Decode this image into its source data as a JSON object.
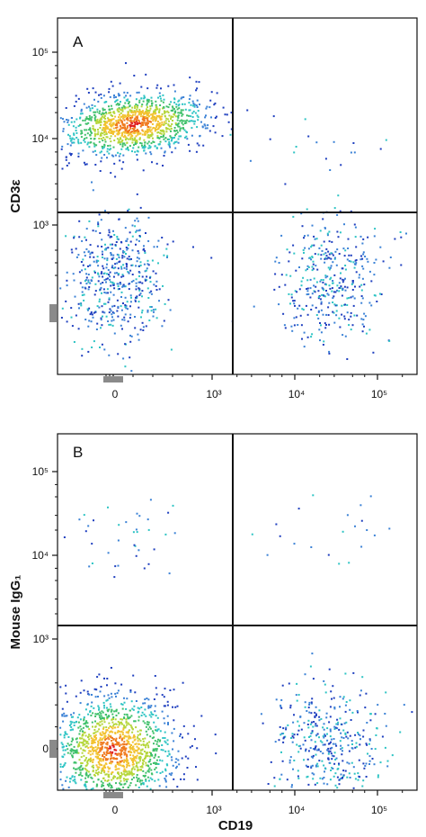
{
  "chart_data": [
    {
      "type": "scatter",
      "panel_label": "A",
      "ylabel": "CD3ε",
      "xlabel": "",
      "x_ticks": [
        {
          "label": "0",
          "value": 0
        },
        {
          "label": "10³",
          "value": 1000
        },
        {
          "label": "10⁴",
          "value": 10000
        },
        {
          "label": "10⁵",
          "value": 100000
        }
      ],
      "y_ticks": [
        {
          "label": "10³",
          "value": 1000
        },
        {
          "label": "10⁴",
          "value": 10000
        },
        {
          "label": "10⁵",
          "value": 100000
        }
      ],
      "quadrant_gate": {
        "x": 1500,
        "y": 1400
      },
      "populations": [
        {
          "x_center": 200,
          "y_center": 15000,
          "count": 1200,
          "colored": "density"
        },
        {
          "x_center": 0,
          "y_center": 150,
          "count": 520,
          "colored": "blue"
        },
        {
          "x_center": 25000,
          "y_center": 150,
          "count": 380,
          "colored": "blue"
        },
        {
          "x_center": 20000,
          "y_center": 8000,
          "count": 18,
          "colored": "blue"
        }
      ]
    },
    {
      "type": "scatter",
      "panel_label": "B",
      "ylabel": "Mouse IgG₁",
      "xlabel": "CD19",
      "x_ticks": [
        {
          "label": "0",
          "value": 0
        },
        {
          "label": "10³",
          "value": 1000
        },
        {
          "label": "10⁴",
          "value": 10000
        },
        {
          "label": "10⁵",
          "value": 100000
        }
      ],
      "y_ticks": [
        {
          "label": "0",
          "value": 0
        },
        {
          "label": "10³",
          "value": 1000
        },
        {
          "label": "10⁴",
          "value": 10000
        },
        {
          "label": "10⁵",
          "value": 100000
        }
      ],
      "quadrant_gate": {
        "x": 1500,
        "y": 1400
      },
      "populations": [
        {
          "x_center": 0,
          "y_center": 0,
          "count": 1400,
          "colored": "density"
        },
        {
          "x_center": 25000,
          "y_center": 0,
          "count": 420,
          "colored": "blue"
        },
        {
          "x_center": 100,
          "y_center": 15000,
          "count": 40,
          "colored": "blue"
        },
        {
          "x_center": 30000,
          "y_center": 20000,
          "count": 22,
          "colored": "blue"
        }
      ]
    }
  ],
  "colors": {
    "frame": "#111111",
    "density_scale": [
      "#1f3fbf",
      "#3b82d6",
      "#2ec4c4",
      "#3fc06a",
      "#b5d63a",
      "#f2c230",
      "#f07a1e",
      "#e02020"
    ]
  }
}
